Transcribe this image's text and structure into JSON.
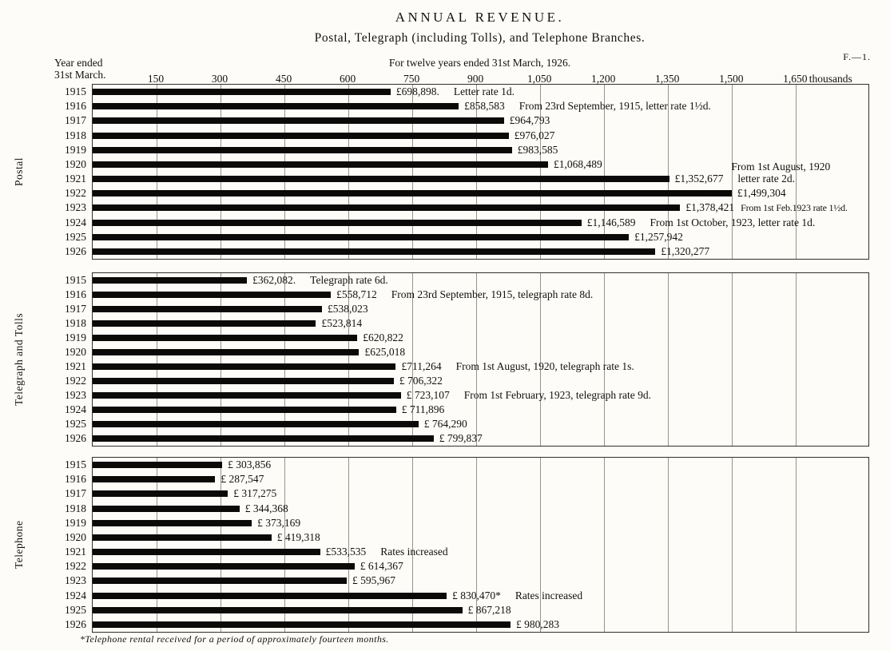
{
  "header": {
    "plate_ref": "F.—1."
  },
  "axis": {
    "row_label_line1": "Year ended",
    "row_label_line2": "31st March.",
    "unit": "thousands",
    "max_thousands": 1820,
    "ticks": [
      150,
      300,
      450,
      600,
      750,
      900,
      1050,
      1200,
      1350,
      1500,
      1650
    ],
    "tick_labels": [
      "150",
      "300",
      "450",
      "600",
      "750",
      "900",
      "1,050",
      "1,200",
      "1,350",
      "1,500",
      "1,650"
    ]
  },
  "footnote": "*Telephone rental received for a period of approximately fourteen months.",
  "chart_data": {
    "type": "bar",
    "orientation": "horizontal",
    "title": "ANNUAL REVENUE.",
    "subtitle": "Postal, Telegraph (including Tolls), and Telephone Branches.",
    "period": "For twelve years ended 31st March, 1926.",
    "unit": "thousands of pounds",
    "xlim": [
      0,
      1820
    ],
    "grid": true,
    "categories": [
      "1915",
      "1916",
      "1917",
      "1918",
      "1919",
      "1920",
      "1921",
      "1922",
      "1923",
      "1924",
      "1925",
      "1926"
    ],
    "series": [
      {
        "name": "Postal",
        "rows": [
          {
            "year": "1915",
            "value": 698898,
            "label": "£698,898.",
            "note": "Letter rate 1d."
          },
          {
            "year": "1916",
            "value": 858583,
            "label": "£858,583",
            "note": "From 23rd September, 1915, letter rate 1½d."
          },
          {
            "year": "1917",
            "value": 964793,
            "label": "£964,793"
          },
          {
            "year": "1918",
            "value": 976027,
            "label": "£976,027"
          },
          {
            "year": "1919",
            "value": 983585,
            "label": "£983,585"
          },
          {
            "year": "1920",
            "value": 1068489,
            "label": "£1,068,489"
          },
          {
            "year": "1921",
            "value": 1352677,
            "label": "£1,352,677",
            "note": "letter rate 2d.",
            "note_above": "From 1st August, 1920"
          },
          {
            "year": "1922",
            "value": 1499304,
            "label": "£1,499,304"
          },
          {
            "year": "1923",
            "value": 1378421,
            "label": "£1,378,421",
            "note": "From 1st Feb.1923 rate 1½d.",
            "compact": true
          },
          {
            "year": "1924",
            "value": 1146589,
            "label": "£1,146,589",
            "note": "From 1st October, 1923, letter rate 1d."
          },
          {
            "year": "1925",
            "value": 1257942,
            "label": "£1,257,942"
          },
          {
            "year": "1926",
            "value": 1320277,
            "label": "£1,320,277"
          }
        ]
      },
      {
        "name": "Telegraph and Tolls",
        "rows": [
          {
            "year": "1915",
            "value": 362082,
            "label": "£362,082.",
            "note": "Telegraph rate 6d."
          },
          {
            "year": "1916",
            "value": 558712,
            "label": "£558,712",
            "note": "From 23rd September, 1915, telegraph rate 8d."
          },
          {
            "year": "1917",
            "value": 538023,
            "label": "£538,023"
          },
          {
            "year": "1918",
            "value": 523814,
            "label": "£523,814"
          },
          {
            "year": "1919",
            "value": 620822,
            "label": "£620,822"
          },
          {
            "year": "1920",
            "value": 625018,
            "label": "£625,018"
          },
          {
            "year": "1921",
            "value": 711264,
            "label": "£711,264",
            "note": "From 1st August, 1920, telegraph rate 1s."
          },
          {
            "year": "1922",
            "value": 706322,
            "label": "£ 706,322"
          },
          {
            "year": "1923",
            "value": 723107,
            "label": "£ 723,107",
            "note": "From 1st February, 1923, telegraph rate 9d."
          },
          {
            "year": "1924",
            "value": 711896,
            "label": "£ 711,896"
          },
          {
            "year": "1925",
            "value": 764290,
            "label": "£ 764,290"
          },
          {
            "year": "1926",
            "value": 799837,
            "label": "£ 799,837"
          }
        ]
      },
      {
        "name": "Telephone",
        "rows": [
          {
            "year": "1915",
            "value": 303856,
            "label": "£ 303,856"
          },
          {
            "year": "1916",
            "value": 287547,
            "label": "£ 287,547"
          },
          {
            "year": "1917",
            "value": 317275,
            "label": "£ 317,275"
          },
          {
            "year": "1918",
            "value": 344368,
            "label": "£ 344,368"
          },
          {
            "year": "1919",
            "value": 373169,
            "label": "£ 373,169"
          },
          {
            "year": "1920",
            "value": 419318,
            "label": "£ 419,318"
          },
          {
            "year": "1921",
            "value": 533535,
            "label": "£533,535",
            "note": "Rates increased"
          },
          {
            "year": "1922",
            "value": 614367,
            "label": "£ 614,367"
          },
          {
            "year": "1923",
            "value": 595967,
            "label": "£ 595,967"
          },
          {
            "year": "1924",
            "value": 830470,
            "label": "£ 830,470*",
            "note": "Rates increased"
          },
          {
            "year": "1925",
            "value": 867218,
            "label": "£ 867,218"
          },
          {
            "year": "1926",
            "value": 980283,
            "label": "£ 980,283"
          }
        ]
      }
    ]
  }
}
